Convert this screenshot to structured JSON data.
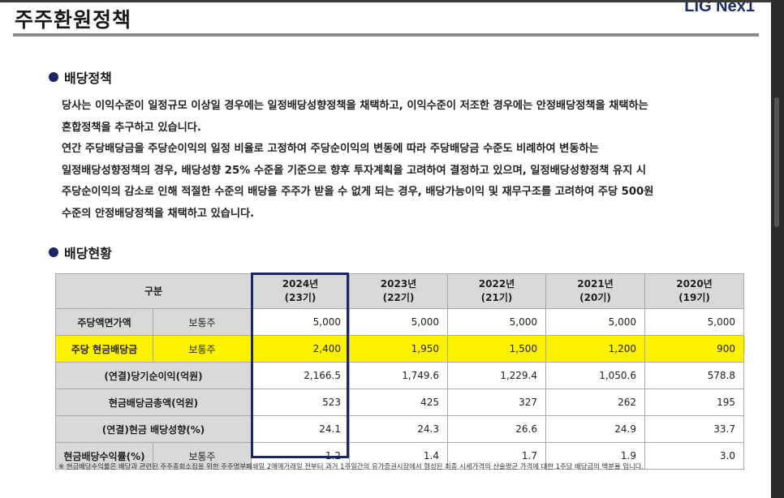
{
  "header": {
    "title": "주주환원정책",
    "brand": "LIG Nex1"
  },
  "dividend_policy": {
    "heading": "배당정책",
    "lines": [
      "당사는 이익수준이 일정규모 이상일 경우에는 일정배당성향정책을 채택하고, 이익수준이 저조한 경우에는 안정배당정책을 채택하는",
      "혼합정책을 추구하고 있습니다.",
      "연간 주당배당금을 주당순이익의 일정 비율로 고정하여 주당순이익의 변동에 따라 주당배당금 수준도 비례하여 변동하는",
      "일정배당성향정책의 경우, 배당성향 25% 수준을 기준으로 향후 투자계획을 고려하여 결정하고 있으며, 일정배당성향정책 유지 시",
      "주당순이익의 감소로 인해 적절한 수준의 배당을 주주가 받을 수 없게 되는 경우, 배당가능이익 및 재무구조를 고려하여 주당 500원",
      "수준의 안정배당정책을 채택하고 있습니다."
    ]
  },
  "dividend_status": {
    "heading": "배당현황",
    "header_label": "구분",
    "years": [
      {
        "year": "2024년",
        "period": "(23기)"
      },
      {
        "year": "2023년",
        "period": "(22기)"
      },
      {
        "year": "2022년",
        "period": "(21기)"
      },
      {
        "year": "2021년",
        "period": "(20기)"
      },
      {
        "year": "2020년",
        "period": "(19기)"
      }
    ],
    "rows": [
      {
        "label": "주당액면가액",
        "sub": "보통주",
        "values": [
          "5,000",
          "5,000",
          "5,000",
          "5,000",
          "5,000"
        ]
      },
      {
        "label": "주당 현금배당금",
        "sub": "보통주",
        "values": [
          "2,400",
          "1,950",
          "1,500",
          "1,200",
          "900"
        ]
      },
      {
        "label": "(연결)당기순이익(억원)",
        "sub": "",
        "values": [
          "2,166.5",
          "1,749.6",
          "1,229.4",
          "1,050.6",
          "578.8"
        ]
      },
      {
        "label": "현금배당금총액(억원)",
        "sub": "",
        "values": [
          "523",
          "425",
          "327",
          "262",
          "195"
        ]
      },
      {
        "label": "(연결)현금 배당성향(%)",
        "sub": "",
        "values": [
          "24.1",
          "24.3",
          "26.6",
          "24.9",
          "33.7"
        ]
      },
      {
        "label": "현금배당수익률(%)",
        "sub": "보통주",
        "values": [
          "1.2",
          "1.4",
          "1.7",
          "1.9",
          "3.0"
        ]
      }
    ],
    "footnote": "※ 현금배당수익률은 배당과 관련된 주주총회소집을 위한 주주명부폐쇄일 2매매거래일 전부터 과거 1주일간의 유가증권시장에서 형성된 최종 시세가격의 산술평균 가격에 대한 1주당 배당금의 백분율 입니다."
  },
  "colors": {
    "accent_navy": "#1b2663",
    "highlight": "#fff200",
    "header_gray": "#d9d9d9"
  }
}
